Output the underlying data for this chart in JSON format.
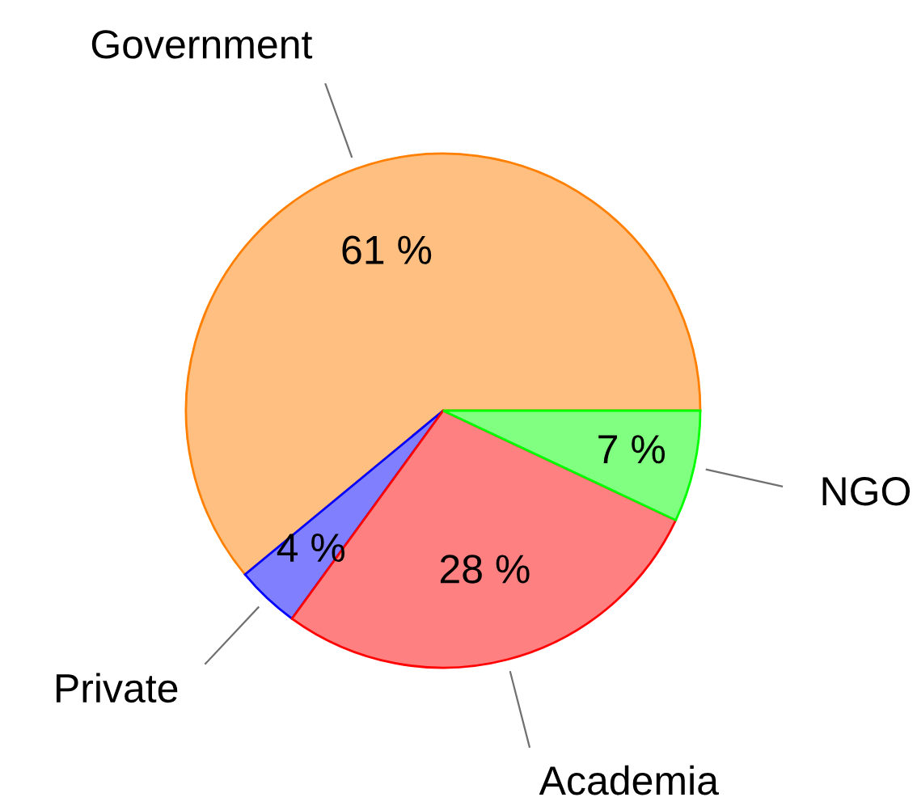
{
  "chart_data": {
    "type": "pie",
    "categories": [
      "Government",
      "Private",
      "Academia",
      "NGO"
    ],
    "values": [
      61,
      4,
      28,
      7
    ],
    "value_labels": [
      "61 %",
      "4 %",
      "28 %",
      "7 %"
    ],
    "colors": [
      "#ffbf80",
      "#8080ff",
      "#ff8080",
      "#80ff80"
    ]
  }
}
